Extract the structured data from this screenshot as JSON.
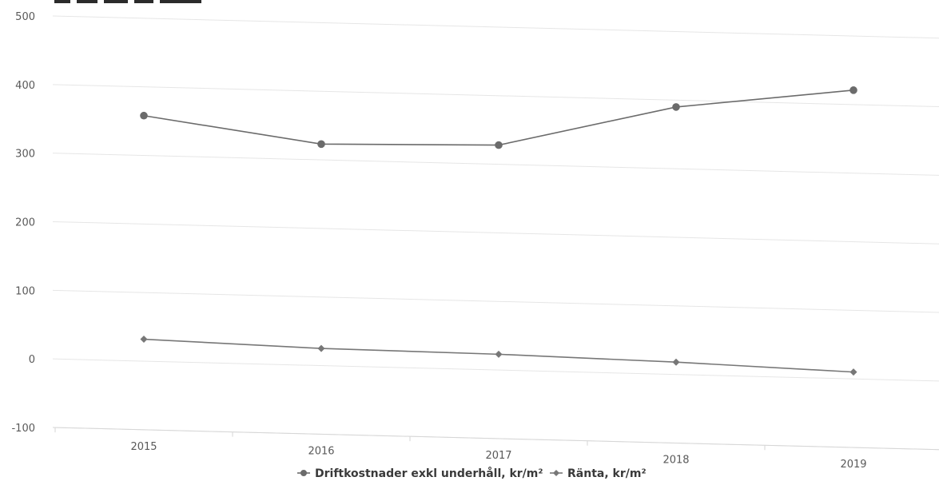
{
  "chart_data": {
    "type": "line",
    "title": "",
    "xlabel": "",
    "ylabel": "",
    "categories": [
      "2015",
      "2016",
      "2017",
      "2018",
      "2019"
    ],
    "ylim": [
      -100,
      500
    ],
    "yticks": [
      -100,
      0,
      100,
      200,
      300,
      400,
      500
    ],
    "grid": true,
    "legend_position": "bottom",
    "series": [
      {
        "name": "Driftkostnader exkl underhåll, kr/m²",
        "values": [
          358,
          323,
          328,
          390,
          421
        ],
        "color": "#6b6b6b",
        "marker": "circle"
      },
      {
        "name": "Ränta, kr/m²",
        "values": [
          32,
          25,
          23,
          18,
          10
        ],
        "color": "#777777",
        "marker": "diamond"
      }
    ]
  }
}
